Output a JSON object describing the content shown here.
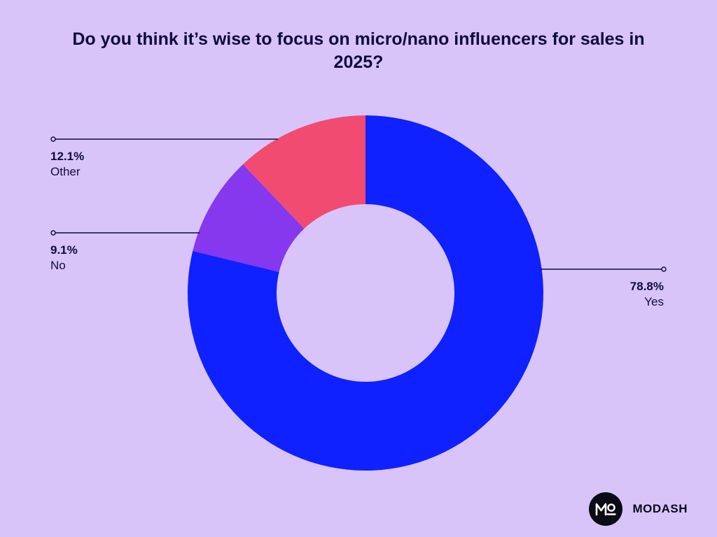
{
  "chart_data": {
    "type": "pie",
    "title": "Do you think it’s wise to focus on micro/nano influencers for sales in 2025?",
    "donut": true,
    "start_angle_deg": 0,
    "direction": "clockwise",
    "slices": [
      {
        "name": "Yes",
        "value": 78.8,
        "label": "78.8%",
        "color": "#0f21ff"
      },
      {
        "name": "No",
        "value": 9.1,
        "label": "9.1%",
        "color": "#8538ee"
      },
      {
        "name": "Other",
        "value": 12.1,
        "label": "12.1%",
        "color": "#f14b72"
      }
    ],
    "legend": "none"
  },
  "brand": {
    "name": "MODASH",
    "logo_icon": "modash-logo-icon",
    "badge_color": "#0b0b16"
  },
  "background_color": "#d9c4fa"
}
